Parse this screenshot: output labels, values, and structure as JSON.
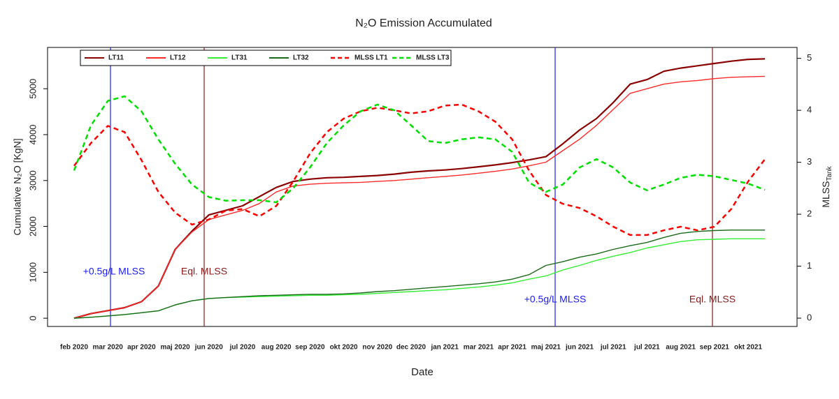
{
  "chart_data": {
    "type": "line",
    "title": "N₂O Emission Accumulated",
    "xlabel": "Date",
    "ylabel": "Cumulative N₂O [KgN]",
    "y2label": {
      "text": "MLSS",
      "sub": "Tank"
    },
    "categories": [
      "feb 2020",
      null,
      "mar 2020",
      null,
      "apr 2020",
      null,
      "maj 2020",
      null,
      "jun 2020",
      null,
      "jul 2020",
      null,
      "aug 2020",
      null,
      "sep 2020",
      null,
      "okt 2020",
      null,
      "nov 2020",
      null,
      "dec 2020",
      null,
      "jan 2021",
      null,
      "mar 2021",
      null,
      "apr 2021",
      null,
      "maj 2021",
      null,
      "jun 2021",
      null,
      "jul 2021",
      null,
      "jul 2021",
      null,
      "aug 2021",
      null,
      "sep 2021",
      null,
      "okt 2021",
      null
    ],
    "ylim": [
      -180,
      5900
    ],
    "yticks": [
      0,
      1000,
      2000,
      3000,
      4000,
      5000
    ],
    "y2lim": [
      -0.16,
      5.21
    ],
    "y2ticks": [
      0,
      1,
      2,
      3,
      4,
      5
    ],
    "grid": false,
    "legend": "top-left",
    "series": [
      {
        "name": "LT11",
        "color": "#8b0000",
        "lty": "solid",
        "values": [
          0,
          100,
          165,
          230,
          360,
          700,
          1500,
          1900,
          2250,
          2350,
          2450,
          2650,
          2850,
          2980,
          3030,
          3060,
          3070,
          3090,
          3110,
          3140,
          3180,
          3210,
          3230,
          3260,
          3300,
          3340,
          3390,
          3450,
          3520,
          3800,
          4100,
          4350,
          4700,
          5100,
          5200,
          5380,
          5450,
          5500,
          5550,
          5600,
          5640,
          5650
        ]
      },
      {
        "name": "LT12",
        "color": "#ff2a2a",
        "lty": "solid",
        "values": [
          0,
          100,
          165,
          230,
          360,
          700,
          1500,
          1880,
          2150,
          2250,
          2350,
          2500,
          2750,
          2880,
          2920,
          2940,
          2950,
          2960,
          2980,
          3000,
          3030,
          3060,
          3090,
          3120,
          3160,
          3200,
          3250,
          3320,
          3400,
          3650,
          3900,
          4200,
          4550,
          4900,
          5000,
          5100,
          5150,
          5180,
          5220,
          5250,
          5260,
          5270
        ]
      },
      {
        "name": "LT31",
        "color": "#33ee33",
        "lty": "solid",
        "values": [
          0,
          20,
          50,
          80,
          120,
          160,
          290,
          380,
          430,
          450,
          460,
          470,
          480,
          490,
          500,
          500,
          510,
          520,
          540,
          560,
          580,
          600,
          620,
          650,
          680,
          720,
          770,
          850,
          920,
          1050,
          1150,
          1260,
          1350,
          1430,
          1530,
          1600,
          1670,
          1710,
          1720,
          1730,
          1730,
          1730
        ]
      },
      {
        "name": "LT32",
        "color": "#1a6b1a",
        "lty": "solid",
        "values": [
          0,
          20,
          50,
          80,
          120,
          160,
          290,
          380,
          430,
          450,
          470,
          490,
          500,
          510,
          520,
          520,
          530,
          550,
          580,
          600,
          630,
          660,
          690,
          720,
          750,
          790,
          850,
          950,
          1150,
          1230,
          1330,
          1400,
          1500,
          1580,
          1650,
          1760,
          1850,
          1890,
          1910,
          1920,
          1920,
          1920
        ]
      },
      {
        "name": "MLSS LT1",
        "color": "#ff0000",
        "lty": "dashed",
        "axis": "y2",
        "values": [
          2.93,
          3.37,
          3.7,
          3.58,
          3.04,
          2.43,
          2.03,
          1.8,
          1.9,
          2.07,
          2.1,
          1.96,
          2.16,
          2.63,
          3.17,
          3.58,
          3.84,
          3.98,
          4.05,
          4.0,
          3.94,
          3.98,
          4.09,
          4.11,
          3.98,
          3.78,
          3.44,
          2.84,
          2.37,
          2.2,
          2.12,
          1.96,
          1.76,
          1.6,
          1.6,
          1.69,
          1.76,
          1.69,
          1.76,
          2.1,
          2.63,
          3.06
        ]
      },
      {
        "name": "MLSS LT3",
        "color": "#00e000",
        "lty": "dashed",
        "axis": "y2",
        "values": [
          2.84,
          3.71,
          4.18,
          4.27,
          3.98,
          3.44,
          2.97,
          2.57,
          2.33,
          2.26,
          2.27,
          2.27,
          2.23,
          2.5,
          2.9,
          3.37,
          3.71,
          3.98,
          4.11,
          4.0,
          3.71,
          3.41,
          3.37,
          3.44,
          3.48,
          3.44,
          3.2,
          2.61,
          2.43,
          2.57,
          2.9,
          3.06,
          2.9,
          2.61,
          2.46,
          2.57,
          2.7,
          2.76,
          2.73,
          2.66,
          2.59,
          2.47
        ]
      }
    ],
    "annotations": [
      {
        "text": "+0.5g/L MLSS",
        "color": "#1a1aff"
      },
      {
        "text": "Eql. MLSS",
        "color": "#8b1a1a"
      },
      {
        "text": "+0.5g/L MLSS",
        "color": "#1a1aff"
      },
      {
        "text": "Eql. MLSS",
        "color": "#8b1a1a"
      }
    ]
  }
}
